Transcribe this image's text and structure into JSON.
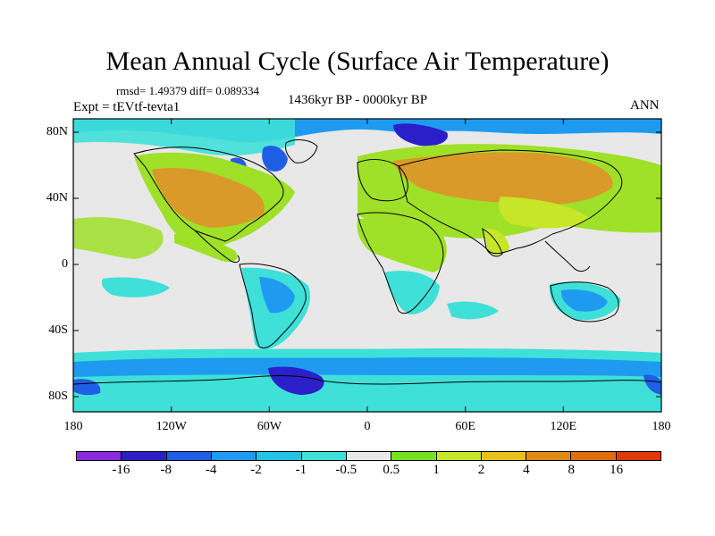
{
  "title": "Mean Annual Cycle (Surface Air Temperature)",
  "stats": "rmsd= 1.49379 diff= 0.089334",
  "experiment": "Expt = tEVtf-tevta1",
  "period": "1436kyr BP - 0000kyr BP",
  "season": "ANN",
  "lat_labels": [
    "80N",
    "40N",
    "0",
    "40S",
    "80S"
  ],
  "lon_labels": [
    "180",
    "120W",
    "60W",
    "0",
    "60E",
    "120E",
    "180"
  ],
  "colorbar": {
    "labels": [
      "-16",
      "-8",
      "-4",
      "-2",
      "-1",
      "-0.5",
      "0.5",
      "1",
      "2",
      "4",
      "8",
      "16"
    ],
    "colors": [
      "#8a2be2",
      "#2a1fc8",
      "#1e5fe6",
      "#1e9bf0",
      "#25c2e8",
      "#3ee0d8",
      "#e8e8e8",
      "#78e020",
      "#c8e628",
      "#e6c21e",
      "#e08c14",
      "#e06e10",
      "#e03a0a"
    ]
  },
  "map_colors": {
    "neutral": "#e8e8e8",
    "land_warm": "#e6c21e",
    "land_hot": "#d99a2a",
    "mild_warm": "#9fe028",
    "yellow_green": "#c8e628",
    "light_cool": "#3ee0d8",
    "cool": "#1e9bf0",
    "cold": "#1e5fe6",
    "very_cold": "#2a1fc8",
    "coast": "#000000"
  }
}
